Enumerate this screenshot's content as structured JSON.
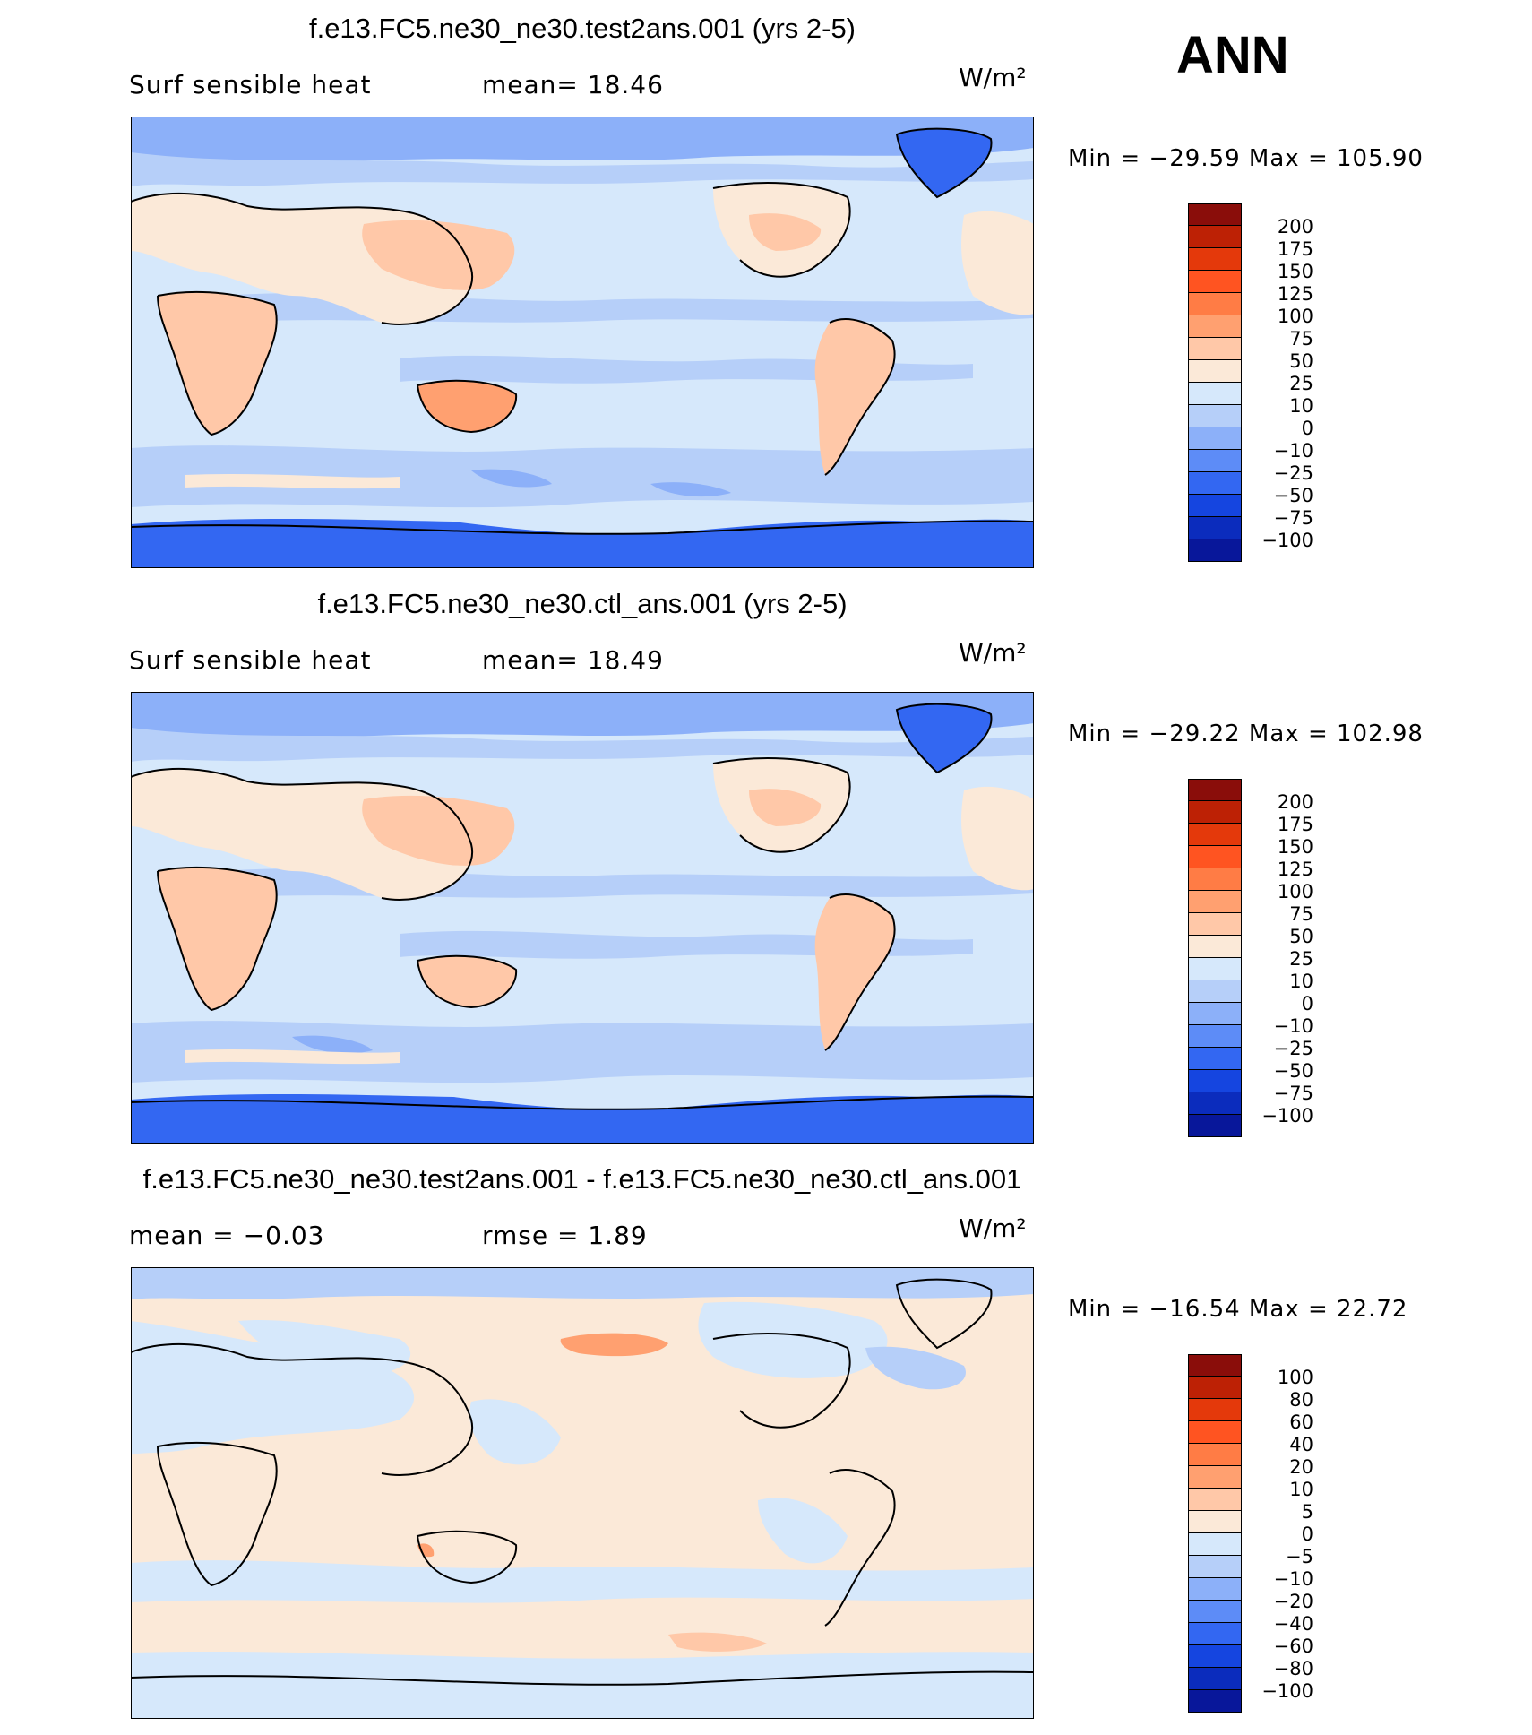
{
  "season": "ANN",
  "units": "W/m²",
  "panels": [
    {
      "title": "f.e13.FC5.ne30_ne30.test2ans.001 (yrs 2-5)",
      "left_label": "Surf sensible heat",
      "mid_label": "mean=  18.46",
      "minmax": "Min = −29.59 Max = 105.90",
      "colorbar": {
        "labels": [
          "200",
          "175",
          "150",
          "125",
          "100",
          "75",
          "50",
          "25",
          "10",
          "0",
          "−10",
          "−25",
          "−50",
          "−75",
          "−100"
        ],
        "colors": [
          "#8a0d0a",
          "#bd2105",
          "#e4390b",
          "#ff5421",
          "#ff7c45",
          "#ffa070",
          "#ffc8a8",
          "#fbe9d8",
          "#d6e8fb",
          "#b6cff9",
          "#8cb0f9",
          "#5d8cf7",
          "#3367f2",
          "#1545e0",
          "#0b2cbd",
          "#08179a"
        ]
      }
    },
    {
      "title": "f.e13.FC5.ne30_ne30.ctl_ans.001 (yrs 2-5)",
      "left_label": "Surf sensible heat",
      "mid_label": "mean=  18.49",
      "minmax": "Min = −29.22 Max = 102.98",
      "colorbar": {
        "labels": [
          "200",
          "175",
          "150",
          "125",
          "100",
          "75",
          "50",
          "25",
          "10",
          "0",
          "−10",
          "−25",
          "−50",
          "−75",
          "−100"
        ],
        "colors": [
          "#8a0d0a",
          "#bd2105",
          "#e4390b",
          "#ff5421",
          "#ff7c45",
          "#ffa070",
          "#ffc8a8",
          "#fbe9d8",
          "#d6e8fb",
          "#b6cff9",
          "#8cb0f9",
          "#5d8cf7",
          "#3367f2",
          "#1545e0",
          "#0b2cbd",
          "#08179a"
        ]
      }
    },
    {
      "title": "f.e13.FC5.ne30_ne30.test2ans.001 - f.e13.FC5.ne30_ne30.ctl_ans.001",
      "left_label": "mean =  −0.03",
      "mid_label": "rmse =   1.89",
      "minmax": "Min = −16.54 Max =  22.72",
      "colorbar": {
        "labels": [
          "100",
          "80",
          "60",
          "40",
          "20",
          "10",
          "5",
          "0",
          "−5",
          "−10",
          "−20",
          "−40",
          "−60",
          "−80",
          "−100"
        ],
        "colors": [
          "#8a0d0a",
          "#bd2105",
          "#e4390b",
          "#ff5421",
          "#ff7c45",
          "#ffa070",
          "#ffc8a8",
          "#fbe9d8",
          "#d6e8fb",
          "#b6cff9",
          "#8cb0f9",
          "#5d8cf7",
          "#3367f2",
          "#1545e0",
          "#0b2cbd",
          "#08179a"
        ]
      }
    }
  ]
}
